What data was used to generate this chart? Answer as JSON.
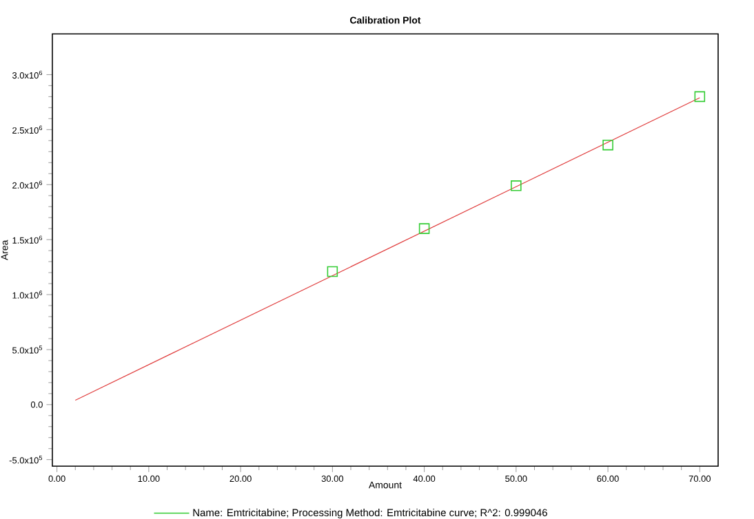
{
  "chart_data": {
    "type": "scatter",
    "title": "Calibration Plot",
    "xlabel": "Amount",
    "ylabel": "Area",
    "xlim": [
      -0.5,
      72
    ],
    "ylim": [
      -560000,
      3370000
    ],
    "xticks": [
      {
        "value": 0,
        "label": "0.00"
      },
      {
        "value": 10,
        "label": "10.00"
      },
      {
        "value": 20,
        "label": "20.00"
      },
      {
        "value": 30,
        "label": "30.00"
      },
      {
        "value": 40,
        "label": "40.00"
      },
      {
        "value": 50,
        "label": "50.00"
      },
      {
        "value": 60,
        "label": "60.00"
      },
      {
        "value": 70,
        "label": "70.00"
      }
    ],
    "yticks": [
      {
        "value": -500000,
        "label": "-5.0x10$^{5}$"
      },
      {
        "value": 0,
        "label": "0.0"
      },
      {
        "value": 500000,
        "label": "5.0x10$^{5}$"
      },
      {
        "value": 1000000,
        "label": "1.0x10$^{6}$"
      },
      {
        "value": 1500000,
        "label": "1.5x10$^{6}$"
      },
      {
        "value": 2000000,
        "label": "2.0x10$^{6}$"
      },
      {
        "value": 2500000,
        "label": "2.5x10$^{6}$"
      },
      {
        "value": 3000000,
        "label": "3.0x10$^{6}$"
      }
    ],
    "legend": "bottom",
    "grid": false,
    "series": [
      {
        "name": "Name: Emtricitabine;  Processing Method: Emtricitabine curve;  R^2: 0.999046",
        "color": "#33cc33",
        "marker": "square",
        "x": [
          30,
          40,
          50,
          60,
          70
        ],
        "values": [
          1210000,
          1600000,
          1990000,
          2360000,
          2800000
        ]
      },
      {
        "type": "line",
        "color": "#e03c3c",
        "marker": "none",
        "line_style": "solid",
        "x": [
          2,
          70
        ],
        "values": [
          40000,
          2790000
        ]
      }
    ]
  }
}
